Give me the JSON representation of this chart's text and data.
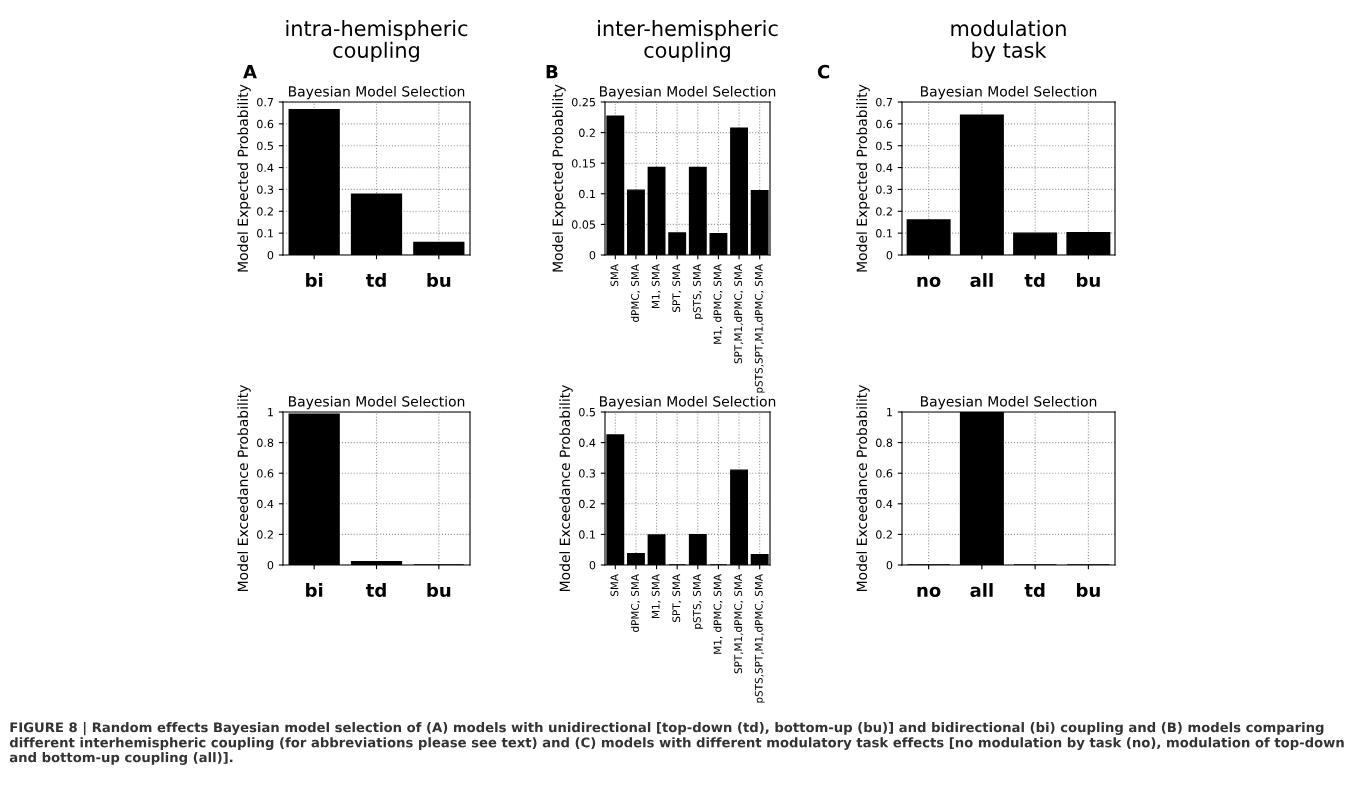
{
  "chart_data": [
    {
      "type": "bar",
      "title": "intra-hemispheric\ncoupling",
      "subtitle": "Bayesian Model Selection",
      "ylabel": "Model Expected Probability",
      "categories": [
        "bi",
        "td",
        "bu"
      ],
      "values": [
        0.665,
        0.278,
        0.057
      ],
      "color": "#000000",
      "ylim": [
        0,
        0.7
      ],
      "yticks": [
        0,
        0.1,
        0.2,
        0.3,
        0.4,
        0.5,
        0.6,
        0.7
      ],
      "grid": true,
      "annotations": [
        "A"
      ]
    },
    {
      "type": "bar",
      "title": "inter-hemispheric\ncoupling",
      "subtitle": "Bayesian Model Selection",
      "ylabel": "Model Expected Probability",
      "categories": [
        "SMA",
        "dPMC, SMA",
        "M1, SMA",
        "SPT, SMA",
        "pSTS, SMA",
        "M1, dPMC, SMA",
        "SPT,M1,dPMC, SMA",
        "pSTS,SPT,M1,dPMC, SMA"
      ],
      "values": [
        0.227,
        0.106,
        0.143,
        0.036,
        0.143,
        0.035,
        0.207,
        0.105
      ],
      "color": "#000000",
      "ylim": [
        0,
        0.25
      ],
      "yticks": [
        0,
        0.05,
        0.1,
        0.15,
        0.2,
        0.25
      ],
      "grid": true,
      "annotations": [
        "B"
      ]
    },
    {
      "type": "bar",
      "title": "modulation\nby task",
      "subtitle": "Bayesian Model Selection",
      "ylabel": "Model Expected Probability",
      "categories": [
        "no",
        "all",
        "td",
        "bu"
      ],
      "values": [
        0.16,
        0.64,
        0.1,
        0.102
      ],
      "color": "#000000",
      "ylim": [
        0,
        0.7
      ],
      "yticks": [
        0,
        0.1,
        0.2,
        0.3,
        0.4,
        0.5,
        0.6,
        0.7
      ],
      "grid": true,
      "annotations": [
        "C"
      ]
    },
    {
      "type": "bar",
      "subtitle": "Bayesian Model Selection",
      "ylabel": "Model Exceedance Probability",
      "categories": [
        "bi",
        "td",
        "bu"
      ],
      "values": [
        0.985,
        0.022,
        0.0
      ],
      "color": "#000000",
      "ylim": [
        0,
        1
      ],
      "yticks": [
        0,
        0.2,
        0.4,
        0.6,
        0.8,
        1
      ],
      "grid": true
    },
    {
      "type": "bar",
      "subtitle": "Bayesian Model Selection",
      "ylabel": "Model Exceedance Probability",
      "categories": [
        "SMA",
        "dPMC, SMA",
        "M1, SMA",
        "SPT, SMA",
        "pSTS, SMA",
        "M1, dPMC, SMA",
        "SPT,M1,dPMC, SMA",
        "pSTS,SPT,M1,dPMC, SMA"
      ],
      "values": [
        0.425,
        0.037,
        0.098,
        0,
        0.099,
        0,
        0.31,
        0.034
      ],
      "color": "#000000",
      "ylim": [
        0,
        0.5
      ],
      "yticks": [
        0,
        0.1,
        0.2,
        0.3,
        0.4,
        0.5
      ],
      "grid": true
    },
    {
      "type": "bar",
      "subtitle": "Bayesian Model Selection",
      "ylabel": "Model Exceedance Probability",
      "categories": [
        "no",
        "all",
        "td",
        "bu"
      ],
      "values": [
        0,
        1.0,
        0,
        0
      ],
      "color": "#000000",
      "ylim": [
        0,
        1
      ],
      "yticks": [
        0,
        0.2,
        0.4,
        0.6,
        0.8,
        1
      ],
      "grid": true,
      "annotations": [
        "FIGURE 8 | Random effects Bayesian model selection of (A) models with unidirectional [top-down (td), bottom-up (bu)] and bidirectional (bi) coupling and (B) models comparing different interhemispheric coupling (for abbreviations please see text) and (C) models with different modulatory task effects [no modulation by task (no), modulation of top-down and bottom-up coupling (all)]."
      ]
    }
  ]
}
